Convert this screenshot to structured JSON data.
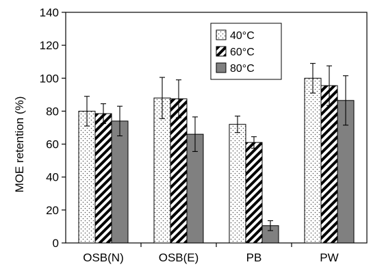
{
  "chart_data": {
    "type": "bar",
    "title": "",
    "xlabel": "",
    "ylabel": "MOE retention (%)",
    "ylim": [
      0,
      140
    ],
    "yticks": [
      0,
      20,
      40,
      60,
      80,
      100,
      120,
      140
    ],
    "categories": [
      "OSB(N)",
      "OSB(E)",
      "PB",
      "PW"
    ],
    "grid": false,
    "legend_position": "top-center",
    "series": [
      {
        "name": "40°C",
        "pattern": "dots",
        "values": [
          80,
          88,
          72,
          100
        ],
        "errors": [
          9,
          12.5,
          5,
          9
        ]
      },
      {
        "name": "60°C",
        "pattern": "hatched",
        "values": [
          78.5,
          87.5,
          61,
          95.5
        ],
        "errors": [
          6,
          11.5,
          3.5,
          12
        ]
      },
      {
        "name": "80°C",
        "pattern": "solid",
        "values": [
          74,
          66,
          10.5,
          86.5
        ],
        "errors": [
          9,
          10.5,
          3,
          15
        ]
      }
    ],
    "colors": {
      "solid": "#808080",
      "stroke": "#000000",
      "dots": "#555555"
    }
  }
}
